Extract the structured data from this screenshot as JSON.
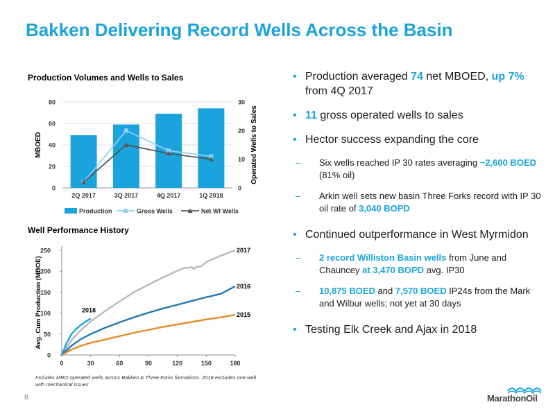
{
  "page": {
    "title": "Bakken Delivering Record Wells Across the Basin",
    "page_number": "8",
    "footnote": "Includes MRO operated wells across Bakken & Three Forks formations. 2018 excludes one well with mechanical issues",
    "logo_text": "MarathonOil"
  },
  "colors": {
    "accent": "#1aa3dd",
    "bar": "#1aa3dd",
    "gross": "#8fd3f0",
    "net": "#555555",
    "s2017": "#b8b8b8",
    "s2016": "#1f77b4",
    "s2015": "#e58a26",
    "s2018": "#1aa3dd"
  },
  "bullets": {
    "b1": {
      "a": "Production averaged ",
      "b": "74",
      "c": " net MBOED, ",
      "d": "up 7%",
      "e": " from 4Q 2017"
    },
    "b2": {
      "a": "11",
      "b": " gross operated wells to sales"
    },
    "b3": {
      "a": "Hector success expanding the core"
    },
    "b3s1": {
      "a": "Six wells reached IP 30 rates averaging ",
      "b": "~2,600 BOED",
      "c": " (81% oil)"
    },
    "b3s2": {
      "a": "Arkin well sets new basin Three Forks record with IP 30 oil rate of ",
      "b": "3,040 BOPD"
    },
    "b4": {
      "a": "Continued outperformance in West Myrmidon"
    },
    "b4s1": {
      "a": "2 record Williston Basin wells",
      "b": " from June and Chauncey ",
      "c": "at 3,470 BOPD",
      "d": " avg. IP30"
    },
    "b4s2": {
      "a": "10,875 BOED",
      "b": " and ",
      "c": "7,570 BOED",
      "d": " IP24s from the Mark and Wilbur wells; not yet at 30 days"
    },
    "b5": {
      "a": "Testing Elk Creek and Ajax in 2018"
    }
  },
  "chart_data": [
    {
      "type": "bar",
      "title": "Production Volumes and Wells to Sales",
      "categories": [
        "2Q 2017",
        "3Q 2017",
        "4Q 2017",
        "1Q 2018"
      ],
      "ylabel": "MBOED",
      "y2label": "Operated Wells to Sales",
      "ylim": [
        0,
        80
      ],
      "y2lim": [
        0,
        30
      ],
      "yticks": [
        "0",
        "20",
        "40",
        "60",
        "80"
      ],
      "y2ticks": [
        "0",
        "10",
        "20",
        "30"
      ],
      "legend_position": "bottom",
      "series": [
        {
          "name": "Production",
          "type": "bar",
          "axis": "left",
          "values": [
            49,
            59,
            69,
            74
          ]
        },
        {
          "name": "Gross Wells",
          "type": "line",
          "axis": "right",
          "values": [
            2,
            20,
            13,
            11
          ]
        },
        {
          "name": "Net WI Wells",
          "type": "line",
          "axis": "right",
          "values": [
            2,
            15,
            12,
            10
          ]
        }
      ]
    },
    {
      "type": "line",
      "title": "Well Performance History",
      "ylabel": "Avg. Cum Production (MBOE)",
      "xlabel": "",
      "xlim": [
        0,
        180
      ],
      "ylim": [
        0,
        250
      ],
      "xticks": [
        "0",
        "30",
        "60",
        "90",
        "120",
        "150",
        "180"
      ],
      "yticks": [
        "0",
        "50",
        "100",
        "150",
        "200",
        "250"
      ],
      "series": [
        {
          "name": "2017",
          "x": [
            0,
            10,
            20,
            30,
            45,
            60,
            75,
            90,
            105,
            120,
            127,
            131,
            135,
            137,
            140,
            145,
            150,
            165,
            180
          ],
          "y": [
            0,
            35,
            60,
            80,
            105,
            128,
            150,
            168,
            185,
            201,
            208,
            208,
            210,
            205,
            210,
            212,
            222,
            237,
            250
          ]
        },
        {
          "name": "2016",
          "x": [
            0,
            10,
            20,
            30,
            45,
            60,
            75,
            90,
            105,
            120,
            135,
            150,
            165,
            180
          ],
          "y": [
            0,
            22,
            38,
            50,
            65,
            78,
            90,
            101,
            111,
            120,
            129,
            138,
            146,
            164
          ]
        },
        {
          "name": "2015",
          "x": [
            0,
            10,
            20,
            30,
            45,
            60,
            75,
            90,
            105,
            120,
            135,
            150,
            165,
            180
          ],
          "y": [
            0,
            13,
            22,
            29,
            37,
            45,
            53,
            60,
            67,
            73,
            79,
            85,
            90,
            96
          ]
        },
        {
          "name": "2018",
          "x": [
            0,
            5,
            10,
            15,
            20,
            25,
            30
          ],
          "y": [
            0,
            28,
            50,
            62,
            72,
            80,
            87
          ]
        }
      ]
    }
  ]
}
